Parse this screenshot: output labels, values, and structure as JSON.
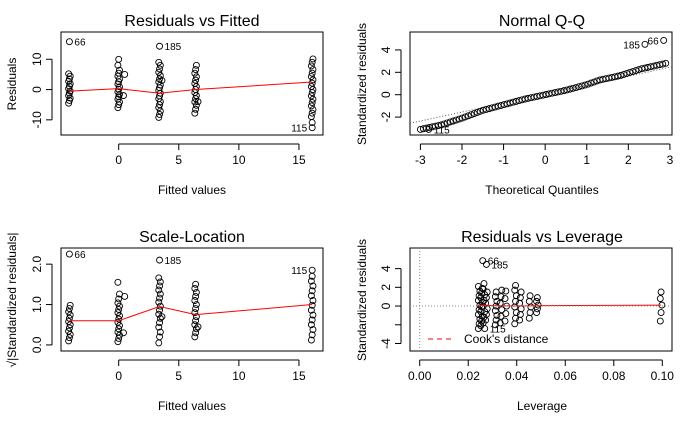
{
  "chart_data": [
    {
      "type": "scatter",
      "title": "Residuals vs Fitted",
      "xlabel": "Fitted values",
      "ylabel": "Residuals",
      "xlim": [
        -4.8,
        17.0
      ],
      "ylim": [
        -15.0,
        19.0
      ],
      "xticks": [
        0,
        5,
        10,
        15
      ],
      "xtick_labels": [
        "0",
        "5",
        "10",
        "15"
      ],
      "yticks": [
        -10,
        0,
        10
      ],
      "ytick_labels": [
        "-10",
        "0",
        "10"
      ],
      "groups": [
        {
          "x": -4.1,
          "values": [
            -4.5,
            -3.6,
            -2.8,
            -2.0,
            -1.2,
            -0.5,
            0.3,
            1.1,
            1.9,
            2.7,
            3.5,
            4.4,
            5.2
          ]
        },
        {
          "x": 0.0,
          "values": [
            -6.0,
            -5.0,
            -4.1,
            -3.2,
            -2.4,
            -1.6,
            -0.8,
            0.1,
            0.9,
            1.8,
            2.6,
            3.5,
            4.4,
            5.4,
            6.4,
            8.0,
            10.0
          ]
        },
        {
          "x": 3.4,
          "values": [
            -9.2,
            -8.2,
            -7.1,
            -6.0,
            -5.0,
            -4.0,
            -3.0,
            -2.1,
            -1.2,
            -0.3,
            0.6,
            1.5,
            2.5,
            3.5,
            4.6,
            5.7,
            6.8,
            8.0,
            9.0
          ]
        },
        {
          "x": 6.4,
          "values": [
            -7.8,
            -6.5,
            -5.2,
            -4.1,
            -3.0,
            -2.0,
            -1.0,
            0.0,
            1.0,
            2.0,
            3.1,
            4.2,
            5.4,
            6.6,
            8.0
          ]
        },
        {
          "x": 16.1,
          "values": [
            -8.9,
            -7.8,
            -6.6,
            -5.4,
            -4.3,
            -3.2,
            -2.1,
            -1.0,
            0.0,
            1.0,
            2.1,
            3.2,
            4.3,
            5.4,
            6.6,
            7.8,
            9.0,
            10.1
          ]
        }
      ],
      "extra_points": [
        {
          "x": 0.4,
          "y": -2.0
        },
        {
          "x": 0.5,
          "y": 5.0
        },
        {
          "x": 3.6,
          "y": 3.0
        },
        {
          "x": 6.6,
          "y": -4.0
        }
      ],
      "outliers": [
        {
          "x": -4.1,
          "y": 15.8,
          "label": "66",
          "side": "right"
        },
        {
          "x": 3.4,
          "y": 14.3,
          "label": "185",
          "side": "right"
        },
        {
          "x": 16.1,
          "y": -10.9,
          "label": "",
          "side": "left"
        },
        {
          "x": 16.1,
          "y": -12.6,
          "label": "115",
          "side": "left"
        }
      ],
      "smoother": {
        "x": [
          -4.1,
          0.0,
          3.4,
          6.4,
          16.1
        ],
        "y": [
          -0.5,
          0.3,
          -1.2,
          0.0,
          2.5
        ]
      }
    },
    {
      "type": "scatter",
      "title": "Normal Q-Q",
      "xlabel": "Theoretical Quantiles",
      "ylabel": "Standardized residuals",
      "xlim": [
        -3.25,
        3.05
      ],
      "ylim": [
        -3.6,
        5.6
      ],
      "xticks": [
        -3,
        -2,
        -1,
        0,
        1,
        2,
        3
      ],
      "xtick_labels": [
        "-3",
        "-2",
        "-1",
        "0",
        "1",
        "2",
        "3"
      ],
      "yticks": [
        -2,
        0,
        2,
        4
      ],
      "ytick_labels": [
        "-2",
        "0",
        "2",
        "4"
      ],
      "n_points": 83,
      "reference_line": {
        "intercept": 0.05,
        "slope": 0.8
      },
      "sample_curve": {
        "q": [
          -3.0,
          -2.5,
          -2.0,
          -1.5,
          -1.0,
          -0.5,
          0.0,
          0.5,
          1.0,
          1.3,
          1.8,
          2.3,
          2.9
        ],
        "y": [
          -3.1,
          -2.7,
          -2.1,
          -1.4,
          -0.9,
          -0.4,
          0.0,
          0.4,
          0.9,
          1.3,
          1.7,
          2.3,
          2.8
        ]
      },
      "outliers": [
        {
          "x": -2.8,
          "y": -3.1,
          "label": "115",
          "side": "right"
        },
        {
          "x": 2.4,
          "y": 4.5,
          "label": "185",
          "side": "left"
        },
        {
          "x": 2.85,
          "y": 4.85,
          "label": "66",
          "side": "left"
        }
      ]
    },
    {
      "type": "scatter",
      "title": "Scale-Location",
      "xlabel": "Fitted values",
      "ylabel": "√|Standardized residuals|",
      "xlim": [
        -4.8,
        17.0
      ],
      "ylim": [
        -0.15,
        2.4
      ],
      "xticks": [
        0,
        5,
        10,
        15
      ],
      "xtick_labels": [
        "0",
        "5",
        "10",
        "15"
      ],
      "yticks": [
        0.0,
        1.0,
        2.0
      ],
      "ytick_labels": [
        "0.0",
        "1.0",
        "2.0"
      ],
      "groups": [
        {
          "x": -4.1,
          "values": [
            0.1,
            0.18,
            0.26,
            0.34,
            0.42,
            0.5,
            0.58,
            0.66,
            0.74,
            0.82,
            0.9,
            0.98
          ]
        },
        {
          "x": 0.0,
          "values": [
            0.08,
            0.16,
            0.24,
            0.32,
            0.4,
            0.48,
            0.56,
            0.64,
            0.72,
            0.8,
            0.88,
            0.96,
            1.04,
            1.14,
            1.26,
            1.55
          ]
        },
        {
          "x": 3.4,
          "values": [
            0.05,
            0.2,
            0.32,
            0.44,
            0.55,
            0.66,
            0.76,
            0.86,
            0.96,
            1.06,
            1.16,
            1.26,
            1.36,
            1.46,
            1.56,
            1.66
          ]
        },
        {
          "x": 6.4,
          "values": [
            0.2,
            0.3,
            0.4,
            0.5,
            0.6,
            0.7,
            0.8,
            0.9,
            1.0,
            1.1,
            1.2,
            1.3,
            1.4,
            1.5
          ]
        },
        {
          "x": 16.1,
          "values": [
            0.12,
            0.25,
            0.38,
            0.5,
            0.62,
            0.74,
            0.86,
            0.98,
            1.1,
            1.22,
            1.34,
            1.46,
            1.58,
            1.7
          ]
        }
      ],
      "extra_points": [
        {
          "x": 0.4,
          "y": 0.3
        },
        {
          "x": 0.5,
          "y": 1.2
        },
        {
          "x": 3.6,
          "y": 0.7
        },
        {
          "x": 6.6,
          "y": 0.45
        }
      ],
      "outliers": [
        {
          "x": -4.1,
          "y": 2.25,
          "label": "66",
          "side": "right"
        },
        {
          "x": 3.4,
          "y": 2.1,
          "label": "185",
          "side": "right"
        },
        {
          "x": 16.1,
          "y": 1.85,
          "label": "115",
          "side": "left"
        }
      ],
      "smoother": {
        "x": [
          -4.1,
          0.0,
          3.4,
          6.4,
          16.1
        ],
        "y": [
          0.6,
          0.6,
          0.95,
          0.75,
          1.0
        ]
      }
    },
    {
      "type": "scatter",
      "title": "Residuals vs Leverage",
      "xlabel": "Leverage",
      "ylabel": "Standardized residuals",
      "xlim": [
        -0.004,
        0.104
      ],
      "ylim": [
        -4.8,
        6.2
      ],
      "xticks": [
        0.0,
        0.02,
        0.04,
        0.06,
        0.08,
        0.1
      ],
      "xtick_labels": [
        "0.00",
        "0.02",
        "0.04",
        "0.06",
        "0.08",
        "0.10"
      ],
      "yticks": [
        -4,
        -2,
        0,
        2,
        4
      ],
      "ytick_labels": [
        "-4",
        "",
        "0",
        "2",
        "4"
      ],
      "groups": [
        {
          "x": 0.0245,
          "values": [
            -2.4,
            -1.9,
            -1.4,
            -0.9,
            -0.4,
            0.1,
            0.6,
            1.1,
            1.6,
            2.1
          ]
        },
        {
          "x": 0.0255,
          "values": [
            -2.1,
            -1.6,
            -1.1,
            -0.6,
            -0.1,
            0.4,
            0.9,
            1.4,
            1.9
          ]
        },
        {
          "x": 0.0265,
          "values": [
            -1.8,
            -1.2,
            -0.6,
            0.0,
            0.6,
            1.2,
            1.8,
            2.4
          ]
        },
        {
          "x": 0.0275,
          "values": [
            -1.5,
            -0.9,
            -0.3,
            0.3,
            0.9,
            1.5
          ]
        },
        {
          "x": 0.0315,
          "values": [
            -2.0,
            -1.5,
            -1.0,
            -0.5,
            0.0,
            0.5,
            1.0,
            1.5
          ]
        },
        {
          "x": 0.0335,
          "values": [
            -1.8,
            -1.1,
            -0.4,
            0.3,
            1.0,
            1.7
          ]
        },
        {
          "x": 0.0355,
          "values": [
            -1.6,
            -0.8,
            0.0,
            0.8,
            1.6
          ]
        },
        {
          "x": 0.0395,
          "values": [
            -1.9,
            -1.3,
            -0.7,
            -0.1,
            0.5,
            1.1,
            1.7,
            2.2
          ]
        },
        {
          "x": 0.0415,
          "values": [
            -1.5,
            -0.9,
            -0.3,
            0.3,
            0.9,
            1.5
          ]
        },
        {
          "x": 0.0455,
          "values": [
            -1.3,
            -0.7,
            -0.1,
            0.5,
            1.1
          ]
        },
        {
          "x": 0.0485,
          "values": [
            -0.7,
            -0.3,
            0.1,
            0.5,
            0.9
          ]
        },
        {
          "x": 0.0995,
          "values": [
            -1.6,
            -0.7,
            0.1,
            0.8,
            1.5
          ]
        }
      ],
      "outliers": [
        {
          "x": 0.026,
          "y": 4.85,
          "label": "66",
          "side": "right"
        },
        {
          "x": 0.0275,
          "y": 4.45,
          "label": "185",
          "side": "right"
        },
        {
          "x": 0.0268,
          "y": -2.4,
          "label": "115",
          "side": "right"
        }
      ],
      "smoother": {
        "x": [
          0.024,
          0.03,
          0.04,
          0.05,
          0.0995
        ],
        "y": [
          0.1,
          0.05,
          0.0,
          0.05,
          0.1
        ]
      },
      "legend": {
        "label": "Cook's distance",
        "color": "#ff0000",
        "position": "bottom-left"
      }
    }
  ],
  "style": {
    "smoother_color": "#ff0000",
    "reference_color": "#555555",
    "marker_color": "#000000"
  }
}
